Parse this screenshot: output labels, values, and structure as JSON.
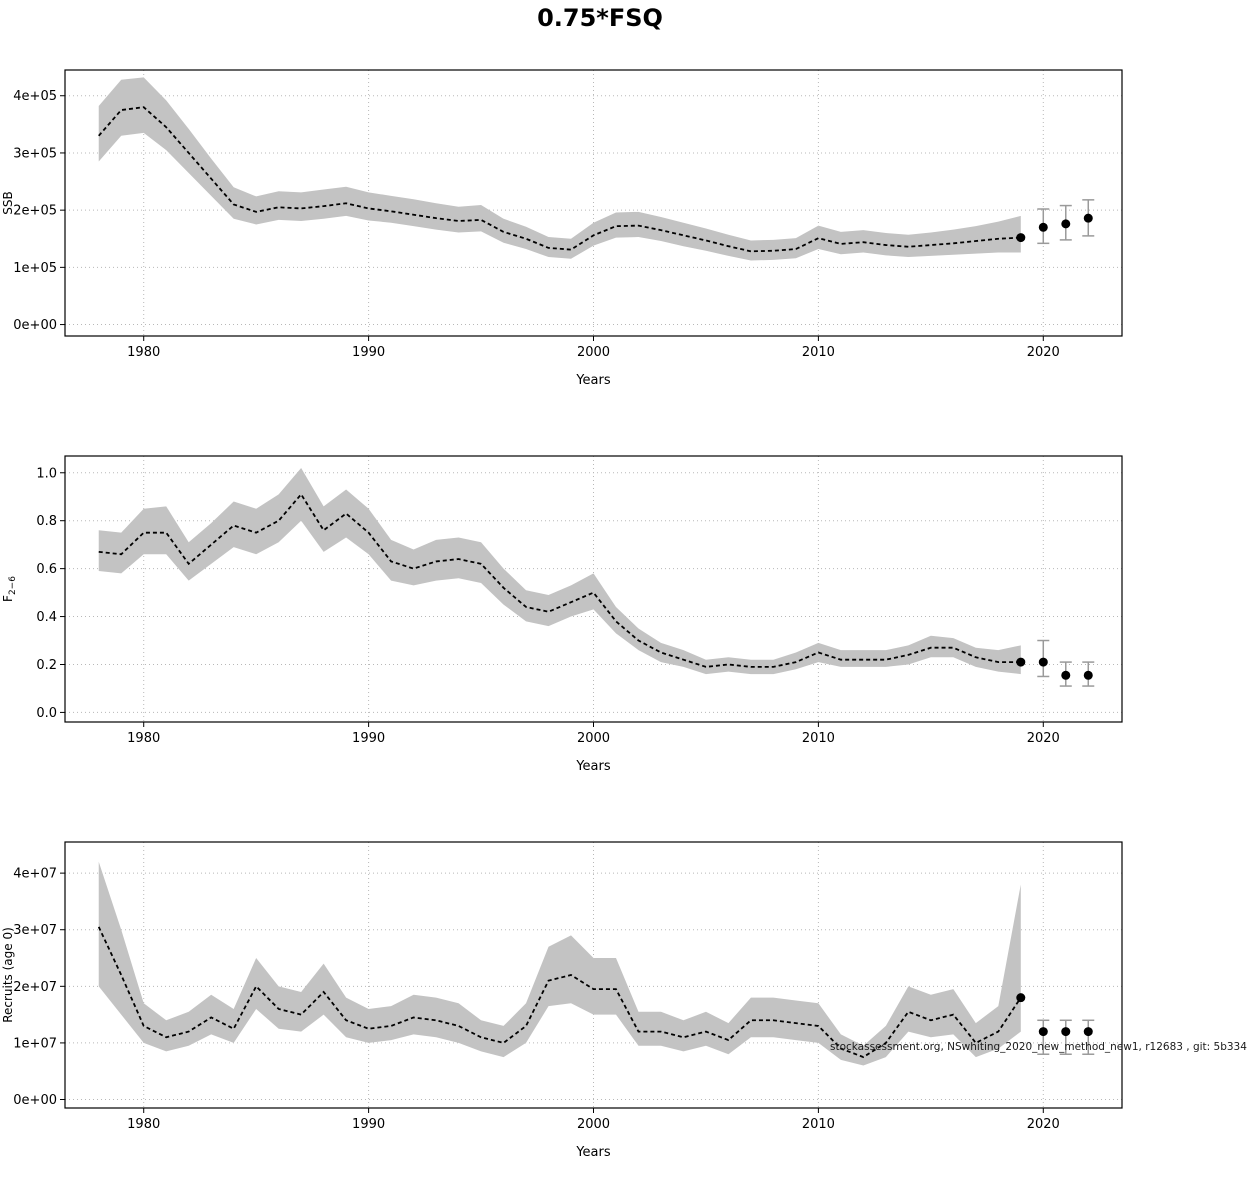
{
  "title": "0.75*FSQ",
  "watermark": "stockassessment.org, NSwhiting_2020_new_method_new1, r12683 , git: 5b334",
  "colors": {
    "band": "#c3c3c3",
    "grid": "#b8b8b8",
    "line": "#000000",
    "error_bar": "#9a9a9a",
    "dot": "#000000"
  },
  "chart_data": [
    {
      "type": "line",
      "name": "ssb",
      "title": "",
      "xlabel": "Years",
      "ylabel": "SSB",
      "ylabel_sub": "",
      "xlim": [
        1976.5,
        2023.5
      ],
      "ylim": [
        -20000,
        445000
      ],
      "xticks": [
        1980,
        1990,
        2000,
        2010,
        2020
      ],
      "xtick_labels": [
        "1980",
        "1990",
        "2000",
        "2010",
        "2020"
      ],
      "yticks": [
        0,
        100000,
        200000,
        300000,
        400000
      ],
      "ytick_labels": [
        "0e+00",
        "1e+05",
        "2e+05",
        "3e+05",
        "4e+05"
      ],
      "grid": true,
      "legend": "none",
      "x": [
        1978,
        1979,
        1980,
        1981,
        1982,
        1983,
        1984,
        1985,
        1986,
        1987,
        1988,
        1989,
        1990,
        1991,
        1992,
        1993,
        1994,
        1995,
        1996,
        1997,
        1998,
        1999,
        2000,
        2001,
        2002,
        2003,
        2004,
        2005,
        2006,
        2007,
        2008,
        2009,
        2010,
        2011,
        2012,
        2013,
        2014,
        2015,
        2016,
        2017,
        2018,
        2019
      ],
      "estimate": [
        330000,
        375000,
        380000,
        345000,
        300000,
        255000,
        210000,
        197000,
        205000,
        203000,
        207000,
        212000,
        203000,
        198000,
        192000,
        186000,
        181000,
        183000,
        162000,
        150000,
        134000,
        131000,
        156000,
        172000,
        173000,
        165000,
        156000,
        147000,
        137000,
        128000,
        129000,
        132000,
        151000,
        141000,
        144000,
        139000,
        136000,
        139000,
        142000,
        146000,
        150000,
        152000
      ],
      "lower": [
        285000,
        330000,
        335000,
        305000,
        265000,
        225000,
        185000,
        175000,
        183000,
        181000,
        185000,
        190000,
        182000,
        178000,
        172000,
        166000,
        161000,
        163000,
        143000,
        132000,
        118000,
        115000,
        138000,
        152000,
        153000,
        146000,
        137000,
        129000,
        120000,
        112000,
        113000,
        116000,
        132000,
        123000,
        126000,
        121000,
        118000,
        120000,
        122000,
        124000,
        126000,
        126000
      ],
      "upper": [
        382000,
        428000,
        432000,
        392000,
        342000,
        290000,
        240000,
        224000,
        233000,
        231000,
        236000,
        241000,
        231000,
        225000,
        219000,
        212000,
        206000,
        209000,
        185000,
        171000,
        153000,
        150000,
        178000,
        196000,
        197000,
        188000,
        178000,
        168000,
        157000,
        147000,
        148000,
        151000,
        173000,
        162000,
        165000,
        160000,
        157000,
        161000,
        166000,
        172000,
        180000,
        190000
      ],
      "forecast": {
        "x": [
          2019,
          2020,
          2021,
          2022
        ],
        "y": [
          152000,
          170000,
          176000,
          186000
        ],
        "lower": [
          126000,
          142000,
          148000,
          155000
        ],
        "upper": [
          190000,
          202000,
          208000,
          218000
        ],
        "has_bar": [
          false,
          true,
          true,
          true
        ]
      }
    },
    {
      "type": "line",
      "name": "fishing-mortality",
      "title": "",
      "xlabel": "Years",
      "ylabel": "F",
      "ylabel_sub": "2−6",
      "xlim": [
        1976.5,
        2023.5
      ],
      "ylim": [
        -0.04,
        1.07
      ],
      "xticks": [
        1980,
        1990,
        2000,
        2010,
        2020
      ],
      "xtick_labels": [
        "1980",
        "1990",
        "2000",
        "2010",
        "2020"
      ],
      "yticks": [
        0.0,
        0.2,
        0.4,
        0.6,
        0.8,
        1.0
      ],
      "ytick_labels": [
        "0.0",
        "0.2",
        "0.4",
        "0.6",
        "0.8",
        "1.0"
      ],
      "grid": true,
      "legend": "none",
      "x": [
        1978,
        1979,
        1980,
        1981,
        1982,
        1983,
        1984,
        1985,
        1986,
        1987,
        1988,
        1989,
        1990,
        1991,
        1992,
        1993,
        1994,
        1995,
        1996,
        1997,
        1998,
        1999,
        2000,
        2001,
        2002,
        2003,
        2004,
        2005,
        2006,
        2007,
        2008,
        2009,
        2010,
        2011,
        2012,
        2013,
        2014,
        2015,
        2016,
        2017,
        2018,
        2019
      ],
      "estimate": [
        0.67,
        0.66,
        0.75,
        0.75,
        0.62,
        0.7,
        0.78,
        0.75,
        0.8,
        0.91,
        0.76,
        0.83,
        0.75,
        0.63,
        0.6,
        0.63,
        0.64,
        0.62,
        0.52,
        0.44,
        0.42,
        0.46,
        0.5,
        0.38,
        0.3,
        0.25,
        0.22,
        0.19,
        0.2,
        0.19,
        0.19,
        0.21,
        0.25,
        0.22,
        0.22,
        0.22,
        0.24,
        0.27,
        0.27,
        0.23,
        0.21,
        0.21
      ],
      "lower": [
        0.59,
        0.58,
        0.66,
        0.66,
        0.55,
        0.62,
        0.69,
        0.66,
        0.71,
        0.8,
        0.67,
        0.73,
        0.66,
        0.55,
        0.53,
        0.55,
        0.56,
        0.54,
        0.45,
        0.38,
        0.36,
        0.4,
        0.43,
        0.33,
        0.26,
        0.21,
        0.19,
        0.16,
        0.17,
        0.16,
        0.16,
        0.18,
        0.21,
        0.19,
        0.19,
        0.19,
        0.2,
        0.23,
        0.23,
        0.19,
        0.17,
        0.16
      ],
      "upper": [
        0.76,
        0.75,
        0.85,
        0.86,
        0.71,
        0.79,
        0.88,
        0.85,
        0.91,
        1.02,
        0.86,
        0.93,
        0.85,
        0.72,
        0.68,
        0.72,
        0.73,
        0.71,
        0.6,
        0.51,
        0.49,
        0.53,
        0.58,
        0.44,
        0.35,
        0.29,
        0.26,
        0.22,
        0.23,
        0.22,
        0.22,
        0.25,
        0.29,
        0.26,
        0.26,
        0.26,
        0.28,
        0.32,
        0.31,
        0.27,
        0.26,
        0.28
      ],
      "forecast": {
        "x": [
          2019,
          2020,
          2021,
          2022
        ],
        "y": [
          0.21,
          0.21,
          0.155,
          0.155
        ],
        "lower": [
          0.16,
          0.15,
          0.11,
          0.11
        ],
        "upper": [
          0.28,
          0.3,
          0.21,
          0.21
        ],
        "has_bar": [
          false,
          true,
          true,
          true
        ]
      }
    },
    {
      "type": "line",
      "name": "recruits",
      "title": "",
      "xlabel": "Years",
      "ylabel": "Recruits (age 0)",
      "ylabel_sub": "",
      "xlim": [
        1976.5,
        2023.5
      ],
      "ylim": [
        -1500000,
        45500000
      ],
      "xticks": [
        1980,
        1990,
        2000,
        2010,
        2020
      ],
      "xtick_labels": [
        "1980",
        "1990",
        "2000",
        "2010",
        "2020"
      ],
      "yticks": [
        0,
        10000000,
        20000000,
        30000000,
        40000000
      ],
      "ytick_labels": [
        "0e+00",
        "1e+07",
        "2e+07",
        "3e+07",
        "4e+07"
      ],
      "grid": true,
      "legend": "none",
      "x": [
        1978,
        1979,
        1980,
        1981,
        1982,
        1983,
        1984,
        1985,
        1986,
        1987,
        1988,
        1989,
        1990,
        1991,
        1992,
        1993,
        1994,
        1995,
        1996,
        1997,
        1998,
        1999,
        2000,
        2001,
        2002,
        2003,
        2004,
        2005,
        2006,
        2007,
        2008,
        2009,
        2010,
        2011,
        2012,
        2013,
        2014,
        2015,
        2016,
        2017,
        2018,
        2019
      ],
      "estimate": [
        30500000,
        22000000,
        13000000,
        11000000,
        12000000,
        14500000,
        12500000,
        20000000,
        16000000,
        15000000,
        19000000,
        14000000,
        12500000,
        13000000,
        14500000,
        14000000,
        13000000,
        11000000,
        10000000,
        13000000,
        21000000,
        22000000,
        19500000,
        19500000,
        12000000,
        12000000,
        11000000,
        12000000,
        10500000,
        14000000,
        14000000,
        13500000,
        13000000,
        9000000,
        7500000,
        10000000,
        15500000,
        14000000,
        15000000,
        10000000,
        12000000,
        18000000
      ],
      "lower": [
        20000000,
        15000000,
        10000000,
        8500000,
        9500000,
        11500000,
        10000000,
        16000000,
        12500000,
        12000000,
        15000000,
        11000000,
        10000000,
        10500000,
        11500000,
        11000000,
        10000000,
        8500000,
        7500000,
        10000000,
        16500000,
        17000000,
        15000000,
        15000000,
        9500000,
        9500000,
        8500000,
        9500000,
        8000000,
        11000000,
        11000000,
        10500000,
        10000000,
        7000000,
        6000000,
        7500000,
        12000000,
        11000000,
        11500000,
        7500000,
        9000000,
        12000000
      ],
      "upper": [
        42000000,
        30000000,
        17000000,
        14000000,
        15500000,
        18500000,
        16000000,
        25000000,
        20000000,
        19000000,
        24000000,
        18000000,
        16000000,
        16500000,
        18500000,
        18000000,
        17000000,
        14000000,
        13000000,
        17000000,
        27000000,
        29000000,
        25000000,
        25000000,
        15500000,
        15500000,
        14000000,
        15500000,
        13500000,
        18000000,
        18000000,
        17500000,
        17000000,
        11500000,
        9500000,
        13000000,
        20000000,
        18500000,
        19500000,
        13500000,
        16500000,
        38000000
      ],
      "forecast": {
        "x": [
          2019,
          2020,
          2021,
          2022
        ],
        "y": [
          18000000,
          12000000,
          12000000,
          12000000
        ],
        "lower": [
          12000000,
          8000000,
          8000000,
          8000000
        ],
        "upper": [
          38000000,
          14000000,
          14000000,
          14000000
        ],
        "has_bar": [
          false,
          true,
          true,
          true
        ]
      }
    }
  ]
}
